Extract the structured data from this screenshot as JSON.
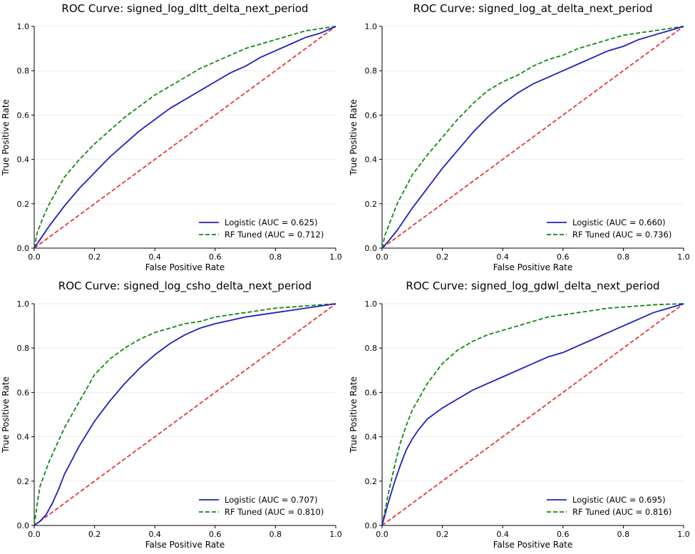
{
  "chart_data": [
    {
      "type": "line",
      "title": "ROC Curve: signed_log_dltt_delta_next_period",
      "xlabel": "False Positive Rate",
      "ylabel": "True Positive Rate",
      "xlim": [
        0,
        1
      ],
      "ylim": [
        0,
        1
      ],
      "xticks": [
        "0.0",
        "0.2",
        "0.4",
        "0.6",
        "0.8",
        "1.0"
      ],
      "yticks": [
        "0.0",
        "0.2",
        "0.4",
        "0.6",
        "0.8",
        "1.0"
      ],
      "grid": "horizontal",
      "legend_position": "lower-right",
      "series": [
        {
          "name": "Logistic (AUC = 0.625)",
          "color": "#1f1fbf",
          "linestyle": "solid",
          "x": [
            0,
            0.02,
            0.05,
            0.1,
            0.15,
            0.2,
            0.25,
            0.3,
            0.35,
            0.4,
            0.45,
            0.5,
            0.55,
            0.6,
            0.65,
            0.7,
            0.75,
            0.8,
            0.85,
            0.9,
            0.95,
            1.0
          ],
          "y": [
            0,
            0.04,
            0.1,
            0.19,
            0.27,
            0.34,
            0.41,
            0.47,
            0.53,
            0.58,
            0.63,
            0.67,
            0.71,
            0.75,
            0.79,
            0.82,
            0.86,
            0.89,
            0.92,
            0.95,
            0.97,
            1.0
          ]
        },
        {
          "name": "RF Tuned (AUC = 0.712)",
          "color": "#118811",
          "linestyle": "dashed",
          "x": [
            0,
            0.01,
            0.03,
            0.05,
            0.1,
            0.15,
            0.2,
            0.25,
            0.3,
            0.35,
            0.4,
            0.45,
            0.5,
            0.55,
            0.6,
            0.65,
            0.7,
            0.75,
            0.8,
            0.85,
            0.9,
            0.95,
            1.0
          ],
          "y": [
            0,
            0.07,
            0.14,
            0.2,
            0.32,
            0.4,
            0.47,
            0.53,
            0.59,
            0.64,
            0.69,
            0.73,
            0.77,
            0.81,
            0.84,
            0.87,
            0.9,
            0.92,
            0.94,
            0.96,
            0.98,
            0.99,
            1.0
          ]
        },
        {
          "name": "",
          "color": "#e03a3a",
          "linestyle": "dashed",
          "x": [
            0,
            1
          ],
          "y": [
            0,
            1
          ]
        }
      ]
    },
    {
      "type": "line",
      "title": "ROC Curve: signed_log_at_delta_next_period",
      "xlabel": "False Positive Rate",
      "ylabel": "True Positive Rate",
      "xlim": [
        0,
        1
      ],
      "ylim": [
        0,
        1
      ],
      "xticks": [
        "0.0",
        "0.2",
        "0.4",
        "0.6",
        "0.8",
        "1.0"
      ],
      "yticks": [
        "0.0",
        "0.2",
        "0.4",
        "0.6",
        "0.8",
        "1.0"
      ],
      "grid": "horizontal",
      "legend_position": "lower-right",
      "series": [
        {
          "name": "Logistic (AUC = 0.660)",
          "color": "#1f1fbf",
          "linestyle": "solid",
          "x": [
            0,
            0.02,
            0.05,
            0.1,
            0.15,
            0.2,
            0.25,
            0.3,
            0.35,
            0.4,
            0.45,
            0.5,
            0.55,
            0.6,
            0.65,
            0.7,
            0.75,
            0.8,
            0.85,
            0.9,
            0.95,
            1.0
          ],
          "y": [
            0,
            0.03,
            0.08,
            0.18,
            0.27,
            0.36,
            0.44,
            0.52,
            0.59,
            0.65,
            0.7,
            0.74,
            0.77,
            0.8,
            0.83,
            0.86,
            0.89,
            0.91,
            0.94,
            0.96,
            0.98,
            1.0
          ]
        },
        {
          "name": "RF Tuned (AUC = 0.736)",
          "color": "#118811",
          "linestyle": "dashed",
          "x": [
            0,
            0.01,
            0.03,
            0.05,
            0.1,
            0.15,
            0.2,
            0.25,
            0.3,
            0.35,
            0.4,
            0.45,
            0.5,
            0.55,
            0.6,
            0.65,
            0.7,
            0.75,
            0.8,
            0.85,
            0.9,
            0.95,
            1.0
          ],
          "y": [
            0,
            0.06,
            0.13,
            0.2,
            0.33,
            0.42,
            0.5,
            0.58,
            0.65,
            0.71,
            0.75,
            0.78,
            0.82,
            0.85,
            0.87,
            0.9,
            0.92,
            0.94,
            0.96,
            0.97,
            0.98,
            0.99,
            1.0
          ]
        },
        {
          "name": "",
          "color": "#e03a3a",
          "linestyle": "dashed",
          "x": [
            0,
            1
          ],
          "y": [
            0,
            1
          ]
        }
      ]
    },
    {
      "type": "line",
      "title": "ROC Curve: signed_log_csho_delta_next_period",
      "xlabel": "False Positive Rate",
      "ylabel": "True Positive Rate",
      "xlim": [
        0,
        1
      ],
      "ylim": [
        0,
        1
      ],
      "xticks": [
        "0.0",
        "0.2",
        "0.4",
        "0.6",
        "0.8",
        "1.0"
      ],
      "yticks": [
        "0.0",
        "0.2",
        "0.4",
        "0.6",
        "0.8",
        "1.0"
      ],
      "grid": "horizontal",
      "legend_position": "lower-right",
      "series": [
        {
          "name": "Logistic (AUC = 0.707)",
          "color": "#1f1fbf",
          "linestyle": "solid",
          "x": [
            0,
            0.02,
            0.04,
            0.06,
            0.08,
            0.1,
            0.15,
            0.2,
            0.25,
            0.3,
            0.35,
            0.4,
            0.45,
            0.5,
            0.55,
            0.6,
            0.65,
            0.7,
            0.75,
            0.8,
            0.85,
            0.9,
            0.95,
            1.0
          ],
          "y": [
            0,
            0.02,
            0.05,
            0.1,
            0.16,
            0.23,
            0.36,
            0.47,
            0.56,
            0.64,
            0.71,
            0.77,
            0.82,
            0.86,
            0.89,
            0.91,
            0.925,
            0.94,
            0.95,
            0.96,
            0.97,
            0.98,
            0.99,
            1.0
          ]
        },
        {
          "name": "RF Tuned (AUC = 0.810)",
          "color": "#118811",
          "linestyle": "dashed",
          "x": [
            0,
            0.01,
            0.02,
            0.05,
            0.1,
            0.15,
            0.2,
            0.25,
            0.3,
            0.35,
            0.4,
            0.45,
            0.5,
            0.55,
            0.6,
            0.65,
            0.7,
            0.75,
            0.8,
            0.85,
            0.9,
            0.95,
            1.0
          ],
          "y": [
            0,
            0.1,
            0.18,
            0.29,
            0.44,
            0.56,
            0.68,
            0.75,
            0.8,
            0.84,
            0.87,
            0.89,
            0.91,
            0.92,
            0.94,
            0.95,
            0.96,
            0.97,
            0.98,
            0.985,
            0.99,
            0.995,
            1.0
          ]
        },
        {
          "name": "",
          "color": "#e03a3a",
          "linestyle": "dashed",
          "x": [
            0,
            1
          ],
          "y": [
            0,
            1
          ]
        }
      ]
    },
    {
      "type": "line",
      "title": "ROC Curve: signed_log_gdwl_delta_next_period",
      "xlabel": "False Positive Rate",
      "ylabel": "True Positive Rate",
      "xlim": [
        0,
        1
      ],
      "ylim": [
        0,
        1
      ],
      "xticks": [
        "0.0",
        "0.2",
        "0.4",
        "0.6",
        "0.8",
        "1.0"
      ],
      "yticks": [
        "0.0",
        "0.2",
        "0.4",
        "0.6",
        "0.8",
        "1.0"
      ],
      "grid": "horizontal",
      "legend_position": "lower-right",
      "series": [
        {
          "name": "Logistic (AUC = 0.695)",
          "color": "#1f1fbf",
          "linestyle": "solid",
          "x": [
            0,
            0.01,
            0.02,
            0.04,
            0.06,
            0.08,
            0.1,
            0.12,
            0.15,
            0.2,
            0.25,
            0.3,
            0.35,
            0.4,
            0.45,
            0.5,
            0.55,
            0.6,
            0.65,
            0.7,
            0.75,
            0.8,
            0.85,
            0.9,
            0.95,
            1.0
          ],
          "y": [
            0,
            0.05,
            0.1,
            0.19,
            0.27,
            0.34,
            0.39,
            0.43,
            0.48,
            0.53,
            0.57,
            0.61,
            0.64,
            0.67,
            0.7,
            0.73,
            0.76,
            0.78,
            0.81,
            0.84,
            0.87,
            0.9,
            0.93,
            0.96,
            0.98,
            1.0
          ]
        },
        {
          "name": "RF Tuned (AUC = 0.816)",
          "color": "#118811",
          "linestyle": "dashed",
          "x": [
            0,
            0.01,
            0.02,
            0.04,
            0.06,
            0.08,
            0.1,
            0.15,
            0.2,
            0.25,
            0.3,
            0.35,
            0.4,
            0.45,
            0.5,
            0.55,
            0.6,
            0.65,
            0.7,
            0.75,
            0.8,
            0.85,
            0.9,
            0.95,
            1.0
          ],
          "y": [
            0,
            0.07,
            0.14,
            0.26,
            0.37,
            0.45,
            0.52,
            0.64,
            0.73,
            0.79,
            0.83,
            0.86,
            0.88,
            0.9,
            0.92,
            0.94,
            0.95,
            0.96,
            0.97,
            0.98,
            0.985,
            0.99,
            0.995,
            0.998,
            1.0
          ]
        },
        {
          "name": "",
          "color": "#e03a3a",
          "linestyle": "dashed",
          "x": [
            0,
            1
          ],
          "y": [
            0,
            1
          ]
        }
      ]
    }
  ]
}
